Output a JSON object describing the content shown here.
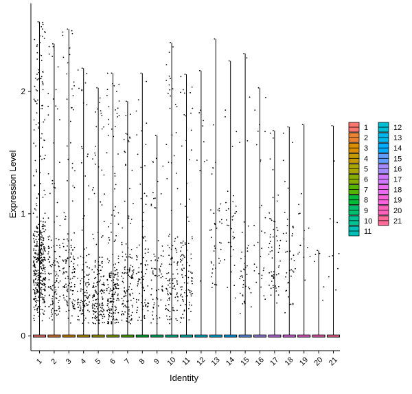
{
  "chart_data": {
    "type": "violin",
    "title": "",
    "xlabel": "Identity",
    "ylabel": "Expression Level",
    "ylim": [
      -0.12,
      2.72
    ],
    "yticks": [
      0,
      1,
      2
    ],
    "categories": [
      "1",
      "2",
      "3",
      "4",
      "5",
      "6",
      "7",
      "8",
      "9",
      "10",
      "11",
      "12",
      "13",
      "14",
      "15",
      "16",
      "17",
      "18",
      "19",
      "20",
      "21"
    ],
    "max_values": [
      2.57,
      2.39,
      2.51,
      2.19,
      2.03,
      2.15,
      1.92,
      2.15,
      1.64,
      2.4,
      2.14,
      2.17,
      2.43,
      2.25,
      2.31,
      2.03,
      1.68,
      1.71,
      1.73,
      0.7,
      1.72
    ],
    "point_density": [
      420,
      130,
      140,
      110,
      170,
      180,
      130,
      90,
      70,
      110,
      100,
      10,
      40,
      35,
      40,
      30,
      60,
      40,
      15,
      5,
      10
    ],
    "point_center": [
      0.55,
      0.45,
      0.45,
      0.3,
      0.25,
      0.35,
      0.35,
      0.4,
      0.4,
      0.45,
      0.45,
      1.6,
      0.7,
      0.8,
      0.6,
      0.7,
      0.65,
      0.55,
      0.9,
      0.6,
      0.7
    ],
    "legend": {
      "position": "right",
      "labels": [
        "1",
        "2",
        "3",
        "4",
        "5",
        "6",
        "7",
        "8",
        "9",
        "10",
        "11",
        "12",
        "13",
        "14",
        "15",
        "16",
        "17",
        "18",
        "19",
        "20",
        "21"
      ],
      "colors": [
        "#F8766D",
        "#EB8335",
        "#DA8F00",
        "#C49A00",
        "#A9A400",
        "#86AC00",
        "#53B400",
        "#00BA38",
        "#00BE6D",
        "#00C094",
        "#00C0B7",
        "#00BDD4",
        "#00B6EB",
        "#00ABFD",
        "#619CFF",
        "#A58AFF",
        "#CF78FF",
        "#EA6AF1",
        "#FA62DB",
        "#FF62BC",
        "#FF6A98"
      ]
    },
    "grid": false,
    "theme": "classic"
  }
}
